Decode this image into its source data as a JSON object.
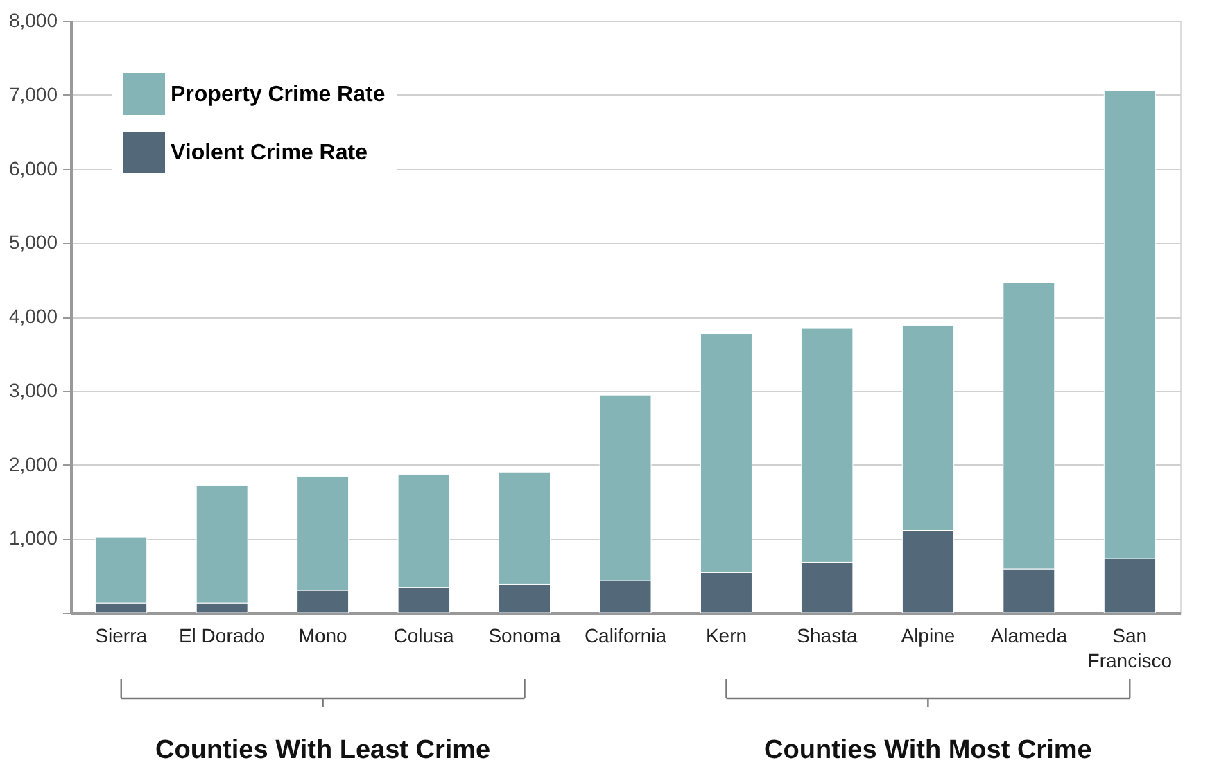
{
  "chart_data": {
    "type": "bar",
    "stacked": true,
    "categories": [
      "Sierra",
      "El Dorado",
      "Mono",
      "Colusa",
      "Sonoma",
      "California",
      "Kern",
      "Shasta",
      "Alpine",
      "Alameda",
      "San Francisco"
    ],
    "series": [
      {
        "name": "Violent Crime Rate",
        "color": "#536878",
        "values": [
          130,
          130,
          300,
          340,
          380,
          430,
          540,
          680,
          1110,
          590,
          730
        ]
      },
      {
        "name": "Property Crime Rate",
        "color": "#85b4b6",
        "values": [
          890,
          1590,
          1540,
          1530,
          1520,
          2510,
          3230,
          3160,
          2770,
          3870,
          6320
        ]
      }
    ],
    "ylim": [
      0,
      8000
    ],
    "yticks": [
      {
        "value": 0,
        "label": null
      },
      {
        "value": 1000,
        "label": "1,000"
      },
      {
        "value": 2000,
        "label": "2,000"
      },
      {
        "value": 3000,
        "label": "3,000"
      },
      {
        "value": 4000,
        "label": "4,000"
      },
      {
        "value": 5000,
        "label": "5,000"
      },
      {
        "value": 6000,
        "label": "6,000"
      },
      {
        "value": 7000,
        "label": "7,000"
      },
      {
        "value": 8000,
        "label": "8,000"
      }
    ],
    "grid": "y",
    "legend": "top left",
    "annotations": [
      {
        "text": "Counties With Least Crime",
        "x": "Mono"
      },
      {
        "text": "Counties With Most Crime",
        "x": "Alpine"
      }
    ]
  }
}
